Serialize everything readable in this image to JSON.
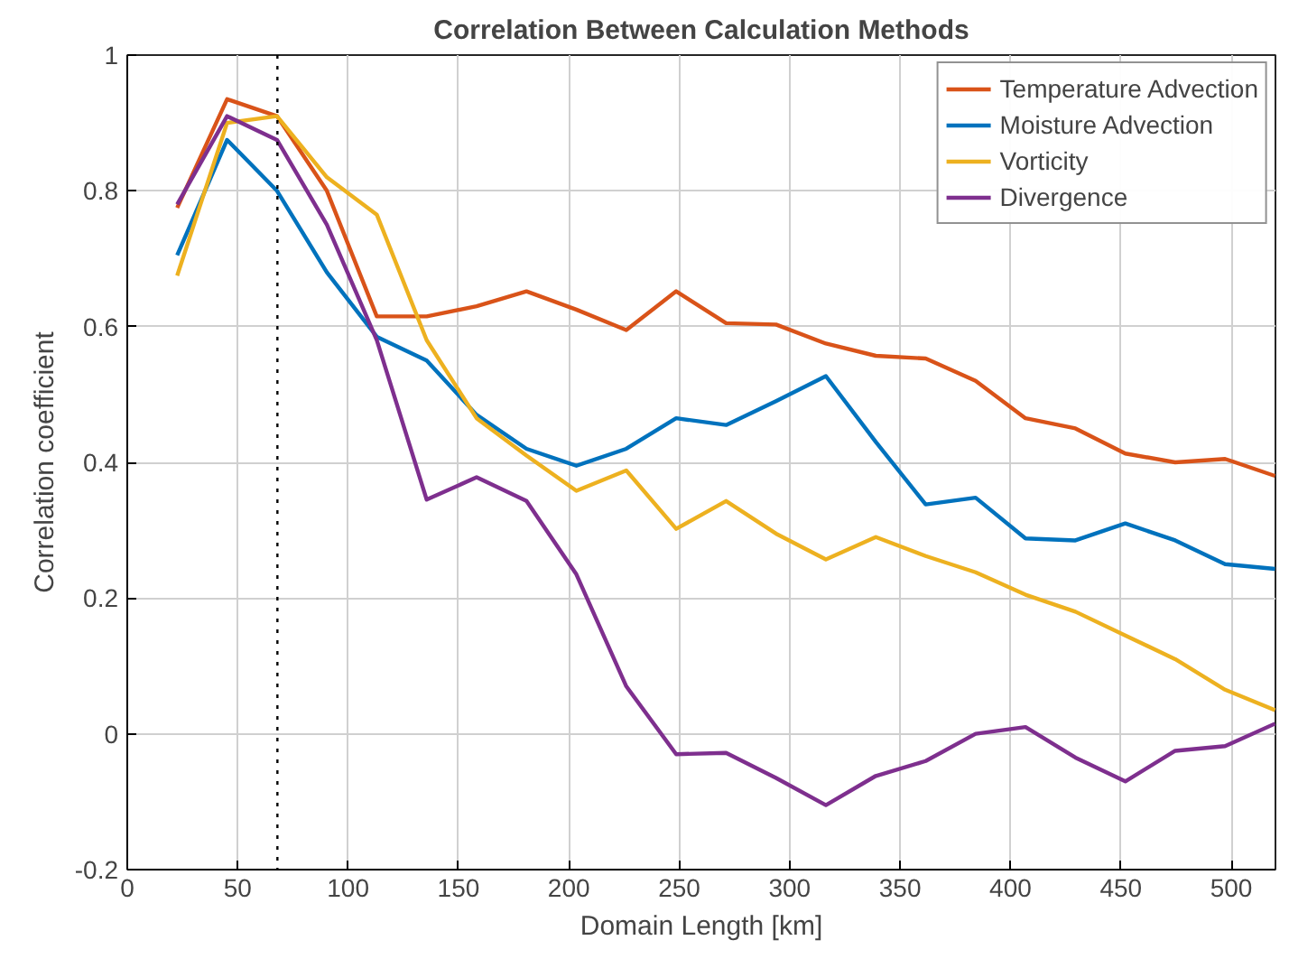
{
  "chart_data": {
    "type": "line",
    "title": "Correlation Between Calculation Methods",
    "xlabel": "Domain Length [km]",
    "ylabel": "Correlation coefficient",
    "x": [
      22.6,
      45.2,
      67.8,
      90.4,
      113,
      135.6,
      158.2,
      180.8,
      203.4,
      226,
      248.6,
      271.2,
      293.8,
      316.4,
      339,
      361.6,
      384.2,
      406.8,
      429.4,
      452,
      474.6,
      497.2,
      519.8
    ],
    "series": [
      {
        "name": "Temperature Advection",
        "color": "#d95319",
        "values": [
          0.775,
          0.935,
          0.91,
          0.8,
          0.615,
          0.615,
          0.63,
          0.652,
          0.625,
          0.595,
          0.652,
          0.605,
          0.603,
          0.575,
          0.557,
          0.553,
          0.52,
          0.465,
          0.45,
          0.413,
          0.4,
          0.405,
          0.38
        ]
      },
      {
        "name": "Moisture Advection",
        "color": "#0072bd",
        "values": [
          0.705,
          0.875,
          0.8,
          0.68,
          0.585,
          0.55,
          0.47,
          0.42,
          0.395,
          0.42,
          0.465,
          0.455,
          0.49,
          0.527,
          0.43,
          0.338,
          0.348,
          0.288,
          0.285,
          0.31,
          0.285,
          0.25,
          0.243
        ]
      },
      {
        "name": "Vorticity",
        "color": "#edb120",
        "values": [
          0.675,
          0.9,
          0.91,
          0.82,
          0.765,
          0.58,
          0.465,
          0.41,
          0.358,
          0.388,
          0.302,
          0.343,
          0.295,
          0.257,
          0.29,
          0.262,
          0.238,
          0.205,
          0.18,
          0.145,
          0.11,
          0.065,
          0.035
        ]
      },
      {
        "name": "Divergence",
        "color": "#7e2f8e",
        "values": [
          0.78,
          0.91,
          0.875,
          0.75,
          0.58,
          0.345,
          0.378,
          0.343,
          0.235,
          0.07,
          -0.03,
          -0.028,
          -0.065,
          -0.105,
          -0.062,
          -0.04,
          0,
          0.01,
          -0.035,
          -0.07,
          -0.025,
          -0.018,
          0.015
        ]
      }
    ],
    "xlim": [
      0,
      520
    ],
    "ylim": [
      -0.2,
      1
    ],
    "xticks": [
      0,
      50,
      100,
      150,
      200,
      250,
      300,
      350,
      400,
      450,
      500
    ],
    "yticks": [
      -0.2,
      0,
      0.2,
      0.4,
      0.6,
      0.8,
      1
    ],
    "ref_lines": [
      {
        "axis": "x",
        "value": 68,
        "label": null,
        "color": "#000000",
        "line_style": "dotted"
      }
    ],
    "grid": true,
    "legend": "top right",
    "marker": "none",
    "line_style": "solid"
  }
}
